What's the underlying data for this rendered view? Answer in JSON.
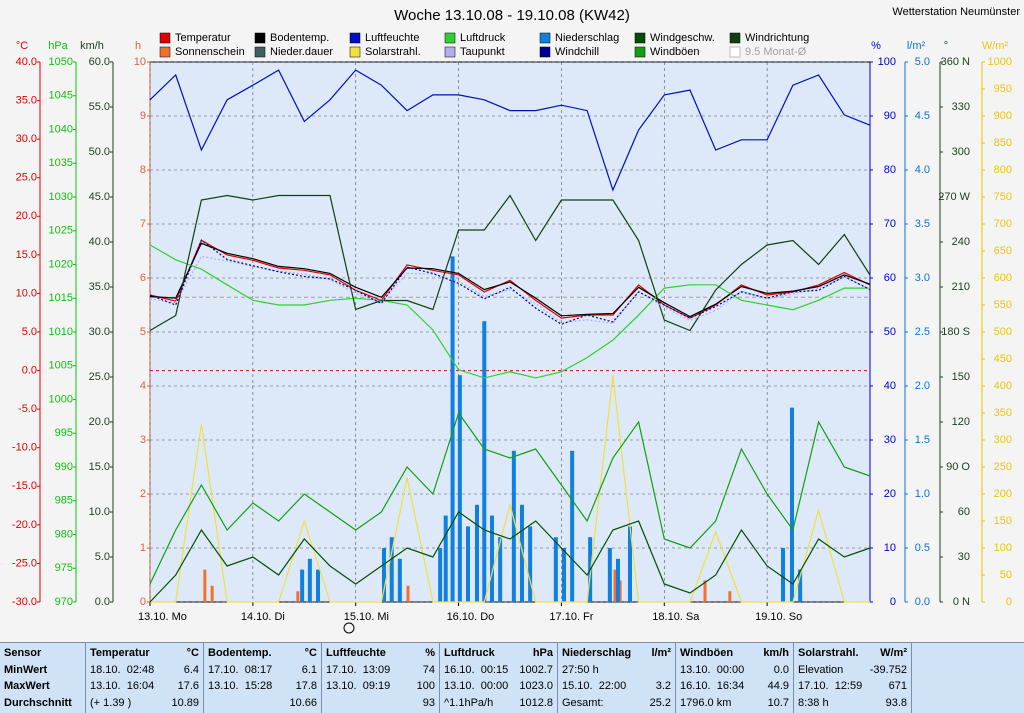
{
  "chart_data": {
    "type": "line",
    "title": "Woche 13.10.08 - 19.10.08 (KW42)",
    "station": "Wetterstation Neumünster",
    "x": [
      0,
      6,
      12,
      18,
      24,
      30,
      36,
      42,
      48,
      54,
      60,
      66,
      72,
      78,
      84,
      90,
      96,
      102,
      108,
      114,
      120,
      126,
      132,
      138,
      144,
      150,
      156,
      162,
      168
    ],
    "xlim": [
      0,
      168
    ],
    "xticks": [
      {
        "value": 0,
        "label": "13.10. Mo"
      },
      {
        "value": 24,
        "label": "14.10. Di"
      },
      {
        "value": 48,
        "label": "15.10. Mi"
      },
      {
        "value": 72,
        "label": "16.10. Do"
      },
      {
        "value": 96,
        "label": "17.10. Fr"
      },
      {
        "value": 120,
        "label": "18.10. Sa"
      },
      {
        "value": 144,
        "label": "19.10. So"
      }
    ],
    "grid": true,
    "axes": {
      "temp": {
        "label": "°C",
        "color": "#e00000",
        "lim": [
          -30,
          40
        ],
        "ticks": [
          {
            "value": 40,
            "label": "40.0"
          },
          {
            "value": 35,
            "label": "35.0"
          },
          {
            "value": 30,
            "label": "30.0"
          },
          {
            "value": 25,
            "label": "25.0"
          },
          {
            "value": 20,
            "label": "20.0"
          },
          {
            "value": 15,
            "label": "15.0"
          },
          {
            "value": 10,
            "label": "10.0"
          },
          {
            "value": 5,
            "label": "5.0"
          },
          {
            "value": 0,
            "label": "0.0"
          },
          {
            "value": -5,
            "label": "-5.0"
          },
          {
            "value": -10,
            "label": "-10.0"
          },
          {
            "value": -15,
            "label": "-15.0"
          },
          {
            "value": -20,
            "label": "-20.0"
          },
          {
            "value": -25,
            "label": "-25.0"
          },
          {
            "value": -30,
            "label": "-30.0"
          }
        ]
      },
      "press": {
        "label": "hPa",
        "color": "#10c010",
        "lim": [
          970,
          1050
        ],
        "ticks": [
          1050,
          1045,
          1040,
          1035,
          1030,
          1025,
          1020,
          1015,
          1010,
          1005,
          1000,
          995,
          990,
          985,
          980,
          975,
          970
        ]
      },
      "wind": {
        "label": "km/h",
        "color": "#204020",
        "lim": [
          0,
          60
        ],
        "ticks": [
          {
            "value": 60,
            "label": "60.0"
          },
          {
            "value": 55,
            "label": "55.0"
          },
          {
            "value": 50,
            "label": "50.0"
          },
          {
            "value": 45,
            "label": "45.0"
          },
          {
            "value": 40,
            "label": "40.0"
          },
          {
            "value": 35,
            "label": "35.0"
          },
          {
            "value": 30,
            "label": "30.0"
          },
          {
            "value": 25,
            "label": "25.0"
          },
          {
            "value": 20,
            "label": "20.0"
          },
          {
            "value": 15,
            "label": "15.0"
          },
          {
            "value": 10,
            "label": "10.0"
          },
          {
            "value": 5,
            "label": "5.0"
          },
          {
            "value": 0,
            "label": "0.0"
          }
        ]
      },
      "hours": {
        "label": "h",
        "color": "#e06040",
        "lim": [
          0,
          10
        ],
        "ticks": [
          10,
          9,
          8,
          7,
          6,
          5,
          4,
          3,
          2,
          1,
          0
        ]
      },
      "hum": {
        "label": "%",
        "color": "#0000d0",
        "lim": [
          0,
          100
        ],
        "ticks": [
          100,
          90,
          80,
          70,
          60,
          50,
          40,
          30,
          20,
          10,
          0
        ]
      },
      "rain": {
        "label": "l/m²",
        "color": "#1070d0",
        "lim": [
          0,
          5
        ],
        "ticks": [
          {
            "value": 5,
            "label": "5.0"
          },
          {
            "value": 4.5,
            "label": "4.5"
          },
          {
            "value": 4,
            "label": "4.0"
          },
          {
            "value": 3.5,
            "label": "3.5"
          },
          {
            "value": 3,
            "label": "3.0"
          },
          {
            "value": 2.5,
            "label": "2.5"
          },
          {
            "value": 2,
            "label": "2.0"
          },
          {
            "value": 1.5,
            "label": "1.5"
          },
          {
            "value": 1,
            "label": "1.0"
          },
          {
            "value": 0.5,
            "label": "0.5"
          },
          {
            "value": 0,
            "label": "0.0"
          }
        ]
      },
      "dir": {
        "label": "°",
        "color": "#204020",
        "lim": [
          0,
          360
        ],
        "ticks": [
          {
            "value": 360,
            "label": "360 N"
          },
          330,
          300,
          {
            "value": 270,
            "label": "270 W"
          },
          240,
          210,
          {
            "value": 180,
            "label": "180 S"
          },
          150,
          120,
          {
            "value": 90,
            "label": "90 O"
          },
          60,
          30,
          {
            "value": 0,
            "label": "0 N"
          }
        ]
      },
      "solar": {
        "label": "W/m²",
        "color": "#e8c800",
        "lim": [
          0,
          1000
        ],
        "ticks": [
          1000,
          950,
          900,
          850,
          800,
          750,
          700,
          650,
          600,
          550,
          500,
          450,
          400,
          350,
          300,
          250,
          200,
          150,
          100,
          50,
          0
        ]
      }
    },
    "series": [
      {
        "name": "Temperatur",
        "color": "#e00000",
        "axis": "temp",
        "style": "line",
        "values": [
          9.8,
          9,
          16.9,
          15,
          14.3,
          13.3,
          13,
          12.4,
          10.4,
          9.1,
          13.7,
          13,
          12.4,
          10.2,
          11.7,
          9.1,
          6.8,
          7.2,
          7.2,
          11.1,
          8.5,
          6.8,
          8.5,
          11.1,
          9.8,
          10.2,
          11.1,
          12.7,
          11.1
        ]
      },
      {
        "name": "Sonnenschein",
        "color": "#f07030",
        "axis": "hours",
        "style": "bar",
        "x": [
          12.8,
          14.5,
          34.5,
          60.2,
          108.5,
          109.7,
          129.5,
          135.3,
          151.7
        ],
        "values": [
          0.6,
          0.3,
          0.2,
          0.3,
          0.6,
          0.4,
          0.4,
          0.2,
          0.3
        ]
      },
      {
        "name": "Bodentemp.",
        "color": "#000000",
        "axis": "temp",
        "style": "line",
        "values": [
          9.6,
          9.4,
          16.5,
          15.2,
          14.5,
          13.5,
          13.2,
          12.6,
          10.8,
          9.5,
          13.3,
          13.2,
          12.6,
          10.5,
          11.5,
          9.4,
          7.1,
          7.3,
          7.4,
          10.8,
          8.8,
          7.0,
          8.6,
          10.9,
          10.0,
          10.3,
          10.9,
          12.4,
          11.2
        ]
      },
      {
        "name": "Nieder.dauer",
        "color": "#406060",
        "axis": "hours",
        "style": "bar",
        "x": [],
        "values": []
      },
      {
        "name": "Luftfeuchte",
        "color": "#0010c0",
        "axis": "hum",
        "style": "line",
        "values": [
          93,
          97.6,
          83.7,
          93,
          95.7,
          98.5,
          89,
          93,
          98.5,
          95.7,
          91,
          93.9,
          93.9,
          93,
          91,
          91,
          92,
          91,
          76.3,
          87.4,
          93.9,
          94.8,
          83.7,
          85.6,
          85.6,
          95.7,
          97.6,
          90.2,
          88.3
        ]
      },
      {
        "name": "Solarstrahl.",
        "color": "#f0e040",
        "axis": "solar",
        "style": "line",
        "values": [
          0,
          0,
          330,
          0,
          0,
          0,
          150,
          0,
          0,
          0,
          230,
          0,
          0,
          0,
          180,
          0,
          0,
          0,
          420,
          0,
          0,
          0,
          130,
          0,
          0,
          0,
          170,
          0,
          0
        ]
      },
      {
        "name": "Luftdruck",
        "color": "#30d030",
        "axis": "press",
        "style": "line",
        "values": [
          1022.9,
          1020.7,
          1019.3,
          1017,
          1014.7,
          1014,
          1014,
          1014.7,
          1015,
          1014.7,
          1014,
          1010.3,
          1004.4,
          1003.2,
          1004.1,
          1003.2,
          1004.1,
          1006.2,
          1008.8,
          1012.5,
          1016.5,
          1017,
          1017,
          1014.7,
          1014,
          1013.3,
          1014.7,
          1016.5,
          1016.5
        ]
      },
      {
        "name": "Taupunkt",
        "color": "#b0b0f0",
        "axis": "temp",
        "style": "dash",
        "values": [
          9.3,
          8.8,
          14.8,
          14.2,
          13.5,
          12.9,
          12.5,
          11.8,
          10.0,
          8.9,
          12.6,
          12.5,
          11.6,
          9.6,
          10.5,
          8.7,
          6.2,
          6.6,
          6.1,
          10.3,
          8.2,
          6.5,
          7.8,
          10.3,
          9.3,
          9.9,
          10.7,
          12.1,
          10.6
        ]
      },
      {
        "name": "Niederschlag",
        "color": "#1080e0",
        "axis": "rain",
        "style": "bar",
        "x": [
          35.5,
          37.3,
          39.2,
          54.6,
          56.4,
          58.3,
          67.7,
          69,
          70.6,
          72.3,
          74.2,
          76.3,
          78,
          79.8,
          81.7,
          84.9,
          86.8,
          88.7,
          94.7,
          96.6,
          98.5,
          102.7,
          107.3,
          109.2,
          112,
          147.7,
          149.8,
          151.7
        ],
        "values": [
          0.3,
          0.4,
          0.3,
          0.5,
          0.6,
          0.4,
          0.5,
          0.8,
          3.2,
          2.1,
          0.7,
          0.9,
          2.6,
          0.8,
          0.6,
          1.4,
          0.9,
          0.7,
          0.6,
          0.5,
          1.4,
          0.6,
          0.5,
          0.4,
          0.7,
          0.5,
          1.8,
          0.3
        ]
      },
      {
        "name": "Windchill",
        "color": "#000090",
        "axis": "temp",
        "style": "dash",
        "values": [
          9.8,
          8.5,
          16.9,
          14.4,
          13.6,
          12.8,
          12.2,
          11.9,
          10.4,
          8.7,
          13.4,
          12.6,
          11.3,
          9.3,
          10.8,
          8.1,
          6.0,
          7.2,
          6.3,
          10.2,
          8.5,
          6.8,
          8.3,
          10.2,
          9.4,
          10.2,
          10.4,
          12.2,
          10.5
        ]
      },
      {
        "name": "Windgeschw.",
        "color": "#005000",
        "axis": "wind",
        "style": "line",
        "values": [
          0,
          3,
          8,
          4,
          5,
          3,
          7,
          4,
          2,
          4,
          6,
          5,
          10,
          8,
          7,
          9,
          6,
          3,
          8,
          9,
          2,
          1,
          3,
          8,
          4,
          2,
          7,
          5,
          6
        ]
      },
      {
        "name": "Windböen",
        "color": "#10a010",
        "axis": "wind",
        "style": "line",
        "values": [
          2,
          8,
          13,
          8,
          11,
          9,
          12,
          10,
          8,
          10,
          15,
          12,
          21,
          17,
          16,
          17,
          13,
          9,
          16,
          20,
          7,
          6,
          9,
          17,
          12,
          8,
          20,
          15,
          14
        ]
      },
      {
        "name": "Windrichtung",
        "color": "#104010",
        "axis": "dir",
        "style": "line",
        "values": [
          181,
          191,
          268,
          271,
          268,
          271,
          271,
          271,
          195,
          201,
          201,
          195,
          248,
          248,
          271,
          241,
          268,
          268,
          268,
          241,
          188,
          181,
          208,
          225,
          238,
          241,
          225,
          245,
          218
        ]
      }
    ],
    "monthly_average": {
      "label": "9.5 Monat-Ø",
      "value": 9.5,
      "axis": "temp",
      "color": "#a0a0a0"
    },
    "reference_lines": [
      {
        "value": 0,
        "axis": "temp",
        "color": "#e00000"
      }
    ]
  },
  "stats_table": {
    "row_labels": [
      "Sensor",
      "MinWert",
      "MaxWert",
      "Durchschnitt"
    ],
    "columns": [
      {
        "name": "Temperatur",
        "unit": "°C",
        "rows": [
          [
            "18.10.  02:48",
            "6.4"
          ],
          [
            "13.10.  16:04",
            "17.6"
          ],
          [
            "(+ 1.39 )",
            "10.89"
          ]
        ]
      },
      {
        "name": "Bodentemp.",
        "unit": "°C",
        "rows": [
          [
            "17.10.  08:17",
            "6.1"
          ],
          [
            "13.10.  15:28",
            "17.8"
          ],
          [
            null,
            "10.66"
          ]
        ]
      },
      {
        "name": "Luftfeuchte",
        "unit": "%",
        "rows": [
          [
            "17.10.  13:09",
            "74"
          ],
          [
            "13.10.  09:19",
            "100"
          ],
          [
            null,
            "93"
          ]
        ]
      },
      {
        "name": "Luftdruck",
        "unit": "hPa",
        "rows": [
          [
            "16.10.  00:15",
            "1002.7"
          ],
          [
            "13.10.  00:00",
            "1023.0"
          ],
          [
            "^1.1hPa/h",
            "1012.8"
          ]
        ]
      },
      {
        "name": "Niederschlag",
        "unit": "l/m²",
        "rows": [
          [
            "27:50 h",
            null
          ],
          [
            "15.10.  22:00",
            "3.2"
          ],
          [
            "Gesamt:",
            "25.2"
          ]
        ]
      },
      {
        "name": "Windböen",
        "unit": "km/h",
        "rows": [
          [
            "13.10.  00:00",
            "0.0"
          ],
          [
            "16.10.  16:34",
            "44.9"
          ],
          [
            "1796.0 km",
            "10.7"
          ]
        ]
      },
      {
        "name": "Solarstrahl.",
        "unit": "W/m²",
        "rows": [
          [
            "Elevation",
            "-39.752"
          ],
          [
            "17.10.  12:59",
            "671"
          ],
          [
            "8:38 h",
            "93.8"
          ]
        ]
      }
    ]
  }
}
